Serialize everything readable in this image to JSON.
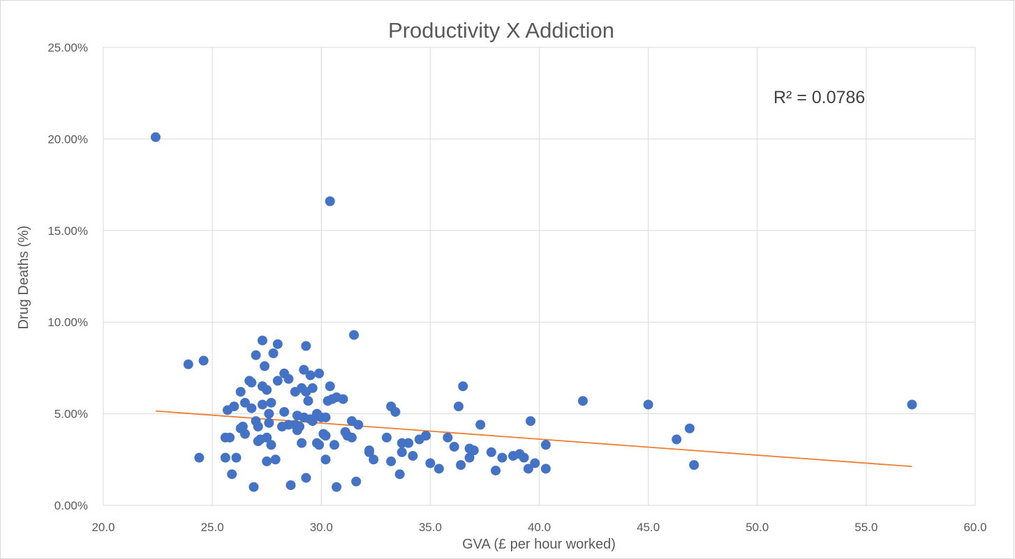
{
  "chart_data": {
    "type": "scatter",
    "title": "Productivity X Addiction",
    "xlabel": "GVA (£ per hour worked)",
    "ylabel": "Drug Deaths (%)",
    "xlim": [
      20,
      60
    ],
    "ylim": [
      0,
      0.25
    ],
    "x_ticks": [
      "20.0",
      "25.0",
      "30.0",
      "35.0",
      "40.0",
      "45.0",
      "50.0",
      "55.0",
      "60.0"
    ],
    "y_ticks": [
      "0.00%",
      "5.00%",
      "10.00%",
      "15.00%",
      "20.00%",
      "25.00%"
    ],
    "grid": true,
    "marker_color": "#4472c4",
    "trendline": {
      "type": "linear",
      "color": "#ed7d31",
      "x": [
        22.4,
        57.1
      ],
      "y": [
        0.0515,
        0.0212
      ],
      "r_squared_label": "R² = 0.0786"
    },
    "points": [
      [
        22.4,
        0.201
      ],
      [
        30.4,
        0.166
      ],
      [
        23.9,
        0.077
      ],
      [
        24.6,
        0.079
      ],
      [
        24.4,
        0.026
      ],
      [
        25.6,
        0.037
      ],
      [
        25.7,
        0.052
      ],
      [
        25.8,
        0.037
      ],
      [
        25.9,
        0.017
      ],
      [
        25.6,
        0.026
      ],
      [
        26.0,
        0.054
      ],
      [
        26.1,
        0.026
      ],
      [
        26.3,
        0.062
      ],
      [
        26.3,
        0.042
      ],
      [
        26.4,
        0.043
      ],
      [
        26.5,
        0.056
      ],
      [
        26.5,
        0.039
      ],
      [
        26.7,
        0.068
      ],
      [
        26.8,
        0.067
      ],
      [
        26.8,
        0.053
      ],
      [
        26.9,
        0.01
      ],
      [
        27.0,
        0.046
      ],
      [
        27.0,
        0.082
      ],
      [
        27.1,
        0.043
      ],
      [
        27.1,
        0.035
      ],
      [
        27.2,
        0.036
      ],
      [
        27.3,
        0.055
      ],
      [
        27.3,
        0.09
      ],
      [
        27.3,
        0.065
      ],
      [
        27.4,
        0.076
      ],
      [
        27.5,
        0.024
      ],
      [
        27.5,
        0.063
      ],
      [
        27.5,
        0.037
      ],
      [
        27.6,
        0.045
      ],
      [
        27.6,
        0.05
      ],
      [
        27.7,
        0.033
      ],
      [
        27.7,
        0.056
      ],
      [
        27.8,
        0.083
      ],
      [
        27.9,
        0.025
      ],
      [
        28.0,
        0.088
      ],
      [
        28.0,
        0.068
      ],
      [
        28.2,
        0.043
      ],
      [
        28.3,
        0.051
      ],
      [
        28.3,
        0.072
      ],
      [
        28.5,
        0.069
      ],
      [
        28.5,
        0.044
      ],
      [
        28.6,
        0.011
      ],
      [
        28.8,
        0.044
      ],
      [
        28.8,
        0.062
      ],
      [
        28.9,
        0.049
      ],
      [
        28.9,
        0.041
      ],
      [
        29.0,
        0.043
      ],
      [
        29.1,
        0.034
      ],
      [
        29.1,
        0.064
      ],
      [
        29.2,
        0.074
      ],
      [
        29.2,
        0.048
      ],
      [
        29.3,
        0.087
      ],
      [
        29.3,
        0.015
      ],
      [
        29.3,
        0.062
      ],
      [
        29.4,
        0.057
      ],
      [
        29.5,
        0.071
      ],
      [
        29.5,
        0.047
      ],
      [
        29.6,
        0.064
      ],
      [
        29.6,
        0.046
      ],
      [
        29.8,
        0.034
      ],
      [
        29.8,
        0.05
      ],
      [
        29.9,
        0.033
      ],
      [
        29.9,
        0.072
      ],
      [
        30.0,
        0.048
      ],
      [
        30.1,
        0.039
      ],
      [
        30.2,
        0.025
      ],
      [
        30.2,
        0.038
      ],
      [
        30.2,
        0.048
      ],
      [
        30.3,
        0.057
      ],
      [
        30.4,
        0.065
      ],
      [
        30.5,
        0.058
      ],
      [
        30.6,
        0.033
      ],
      [
        30.7,
        0.01
      ],
      [
        30.7,
        0.059
      ],
      [
        31.0,
        0.058
      ],
      [
        31.1,
        0.04
      ],
      [
        31.2,
        0.038
      ],
      [
        31.4,
        0.046
      ],
      [
        31.4,
        0.037
      ],
      [
        31.5,
        0.093
      ],
      [
        31.6,
        0.013
      ],
      [
        31.7,
        0.044
      ],
      [
        32.2,
        0.03
      ],
      [
        32.2,
        0.029
      ],
      [
        32.4,
        0.025
      ],
      [
        33.0,
        0.037
      ],
      [
        33.2,
        0.054
      ],
      [
        33.2,
        0.024
      ],
      [
        33.4,
        0.051
      ],
      [
        33.6,
        0.017
      ],
      [
        33.7,
        0.029
      ],
      [
        33.7,
        0.034
      ],
      [
        34.0,
        0.034
      ],
      [
        34.2,
        0.027
      ],
      [
        34.5,
        0.036
      ],
      [
        34.8,
        0.038
      ],
      [
        35.0,
        0.023
      ],
      [
        35.4,
        0.02
      ],
      [
        35.8,
        0.037
      ],
      [
        36.1,
        0.032
      ],
      [
        36.3,
        0.054
      ],
      [
        36.4,
        0.022
      ],
      [
        36.5,
        0.065
      ],
      [
        36.8,
        0.031
      ],
      [
        36.8,
        0.026
      ],
      [
        37.0,
        0.03
      ],
      [
        37.3,
        0.044
      ],
      [
        37.8,
        0.029
      ],
      [
        38.0,
        0.019
      ],
      [
        38.3,
        0.026
      ],
      [
        38.8,
        0.027
      ],
      [
        39.1,
        0.028
      ],
      [
        39.3,
        0.026
      ],
      [
        39.5,
        0.02
      ],
      [
        39.6,
        0.046
      ],
      [
        39.8,
        0.023
      ],
      [
        40.3,
        0.02
      ],
      [
        40.3,
        0.033
      ],
      [
        42.0,
        0.057
      ],
      [
        45.0,
        0.055
      ],
      [
        46.3,
        0.036
      ],
      [
        46.9,
        0.042
      ],
      [
        47.1,
        0.022
      ],
      [
        57.1,
        0.055
      ]
    ]
  }
}
